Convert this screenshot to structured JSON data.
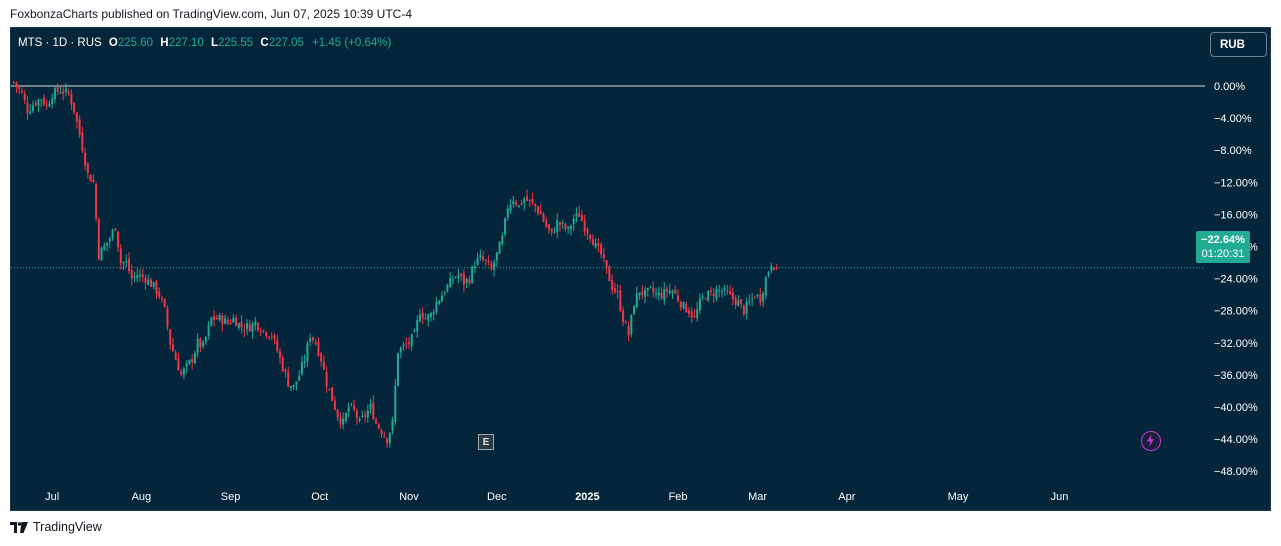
{
  "caption": "FoxbonzaCharts published on TradingView.com, Jun 07, 2025 10:39 UTC-4",
  "legend": {
    "symbol": "MTS · 1D · RUS",
    "open_label": "O",
    "open": "225.60",
    "high_label": "H",
    "high": "227.10",
    "low_label": "L",
    "low": "225.55",
    "close_label": "C",
    "close": "227.05",
    "change": "+1.45 (+0.64%)"
  },
  "currency_button": "RUB",
  "last_badge": {
    "value": "−22.64%",
    "countdown": "01:20:31"
  },
  "earnings_marker": "E",
  "footer_brand": "TradingView",
  "colors": {
    "up": "#22ab94",
    "down": "#f23645",
    "background": "#04253a",
    "zero_line": "#ffffff"
  },
  "icons": [
    "bolt-icon",
    "tradingview-logo-icon",
    "earnings-icon"
  ],
  "chart_data": {
    "type": "candlestick",
    "y_unit": "percent change",
    "y_ticks": [
      "0.00%",
      "−4.00%",
      "−8.00%",
      "−12.00%",
      "−16.00%",
      "−20.00%",
      "−24.00%",
      "−28.00%",
      "−32.00%",
      "−36.00%",
      "−40.00%",
      "−44.00%",
      "−48.00%"
    ],
    "ylim": [
      -49.5,
      1.5
    ],
    "x_ticks": [
      {
        "label": "Jul",
        "bold": false,
        "x": 15.0
      },
      {
        "label": "Aug",
        "bold": false,
        "x": 47.5
      },
      {
        "label": "Sep",
        "bold": false,
        "x": 80.0
      },
      {
        "label": "Oct",
        "bold": false,
        "x": 112.5
      },
      {
        "label": "Nov",
        "bold": false,
        "x": 145.0
      },
      {
        "label": "Dec",
        "bold": false,
        "x": 177.0
      },
      {
        "label": "2025",
        "bold": true,
        "x": 210.0
      },
      {
        "label": "Feb",
        "bold": false,
        "x": 243.0
      },
      {
        "label": "Mar",
        "bold": false,
        "x": 272.0
      },
      {
        "label": "Apr",
        "bold": false,
        "x": 304.5
      },
      {
        "label": "May",
        "bold": false,
        "x": 345.0
      },
      {
        "label": "Jun",
        "bold": false,
        "x": 382.0
      }
    ],
    "x_range": [
      0,
      435
    ],
    "zero_line": 0,
    "last_value": -22.64,
    "anchors": [
      [
        0,
        0.5
      ],
      [
        3,
        -1
      ],
      [
        5,
        -3
      ],
      [
        8,
        -2
      ],
      [
        10,
        -1.5
      ],
      [
        12,
        -2.5
      ],
      [
        14,
        -1
      ],
      [
        17,
        -0.5
      ],
      [
        20,
        -1
      ],
      [
        22,
        -3
      ],
      [
        24,
        -6
      ],
      [
        27,
        -11
      ],
      [
        29,
        -12
      ],
      [
        31,
        -21
      ],
      [
        33,
        -20
      ],
      [
        35,
        -19
      ],
      [
        37,
        -17.5
      ],
      [
        39,
        -22
      ],
      [
        41,
        -22
      ],
      [
        43,
        -24
      ],
      [
        45,
        -23.5
      ],
      [
        48,
        -24
      ],
      [
        51,
        -25
      ],
      [
        53,
        -26
      ],
      [
        55,
        -28
      ],
      [
        57,
        -32
      ],
      [
        59,
        -34
      ],
      [
        61,
        -36
      ],
      [
        63,
        -35
      ],
      [
        65,
        -34
      ],
      [
        67,
        -32
      ],
      [
        69,
        -32.5
      ],
      [
        72,
        -29
      ],
      [
        75,
        -29
      ],
      [
        78,
        -29.5
      ],
      [
        80,
        -29
      ],
      [
        83,
        -30
      ],
      [
        86,
        -30
      ],
      [
        88,
        -29.5
      ],
      [
        91,
        -30.5
      ],
      [
        94,
        -31
      ],
      [
        96,
        -33
      ],
      [
        98,
        -35
      ],
      [
        100,
        -37
      ],
      [
        102,
        -37.5
      ],
      [
        104,
        -36
      ],
      [
        106,
        -34
      ],
      [
        108,
        -31
      ],
      [
        110,
        -32
      ],
      [
        112,
        -34
      ],
      [
        114,
        -37
      ],
      [
        116,
        -39
      ],
      [
        118,
        -41
      ],
      [
        120,
        -42
      ],
      [
        122,
        -40
      ],
      [
        124,
        -40.5
      ],
      [
        126,
        -42
      ],
      [
        128,
        -41
      ],
      [
        130,
        -40
      ],
      [
        132,
        -42
      ],
      [
        134,
        -43
      ],
      [
        136,
        -44
      ],
      [
        138,
        -42
      ],
      [
        140,
        -33
      ],
      [
        142,
        -32.5
      ],
      [
        144,
        -32
      ],
      [
        146,
        -31
      ],
      [
        148,
        -28
      ],
      [
        150,
        -29
      ],
      [
        152,
        -28.5
      ],
      [
        154,
        -27
      ],
      [
        156,
        -26
      ],
      [
        158,
        -25
      ],
      [
        160,
        -24
      ],
      [
        162,
        -23.5
      ],
      [
        164,
        -24.5
      ],
      [
        166,
        -24
      ],
      [
        168,
        -22
      ],
      [
        170,
        -21.5
      ],
      [
        172,
        -22
      ],
      [
        174,
        -23
      ],
      [
        176,
        -21
      ],
      [
        178,
        -19
      ],
      [
        180,
        -15
      ],
      [
        182,
        -14
      ],
      [
        184,
        -15
      ],
      [
        186,
        -14
      ],
      [
        188,
        -14.5
      ],
      [
        190,
        -15
      ],
      [
        192,
        -16
      ],
      [
        194,
        -17.5
      ],
      [
        196,
        -18.5
      ],
      [
        198,
        -17
      ],
      [
        200,
        -17.5
      ],
      [
        202,
        -18
      ],
      [
        204,
        -16.5
      ],
      [
        206,
        -16
      ],
      [
        208,
        -17.5
      ],
      [
        210,
        -18.5
      ],
      [
        212,
        -20
      ],
      [
        214,
        -21
      ],
      [
        216,
        -23
      ],
      [
        218,
        -25
      ],
      [
        220,
        -26
      ],
      [
        222,
        -29
      ],
      [
        224,
        -31
      ],
      [
        226,
        -27
      ],
      [
        228,
        -25.5
      ],
      [
        230,
        -26
      ],
      [
        232,
        -25.5
      ],
      [
        234,
        -26
      ],
      [
        236,
        -26
      ],
      [
        238,
        -25.5
      ],
      [
        240,
        -25.5
      ],
      [
        242,
        -26.5
      ],
      [
        244,
        -27.5
      ],
      [
        246,
        -28
      ],
      [
        248,
        -29
      ],
      [
        250,
        -27
      ],
      [
        252,
        -26
      ],
      [
        254,
        -26
      ],
      [
        256,
        -25.5
      ],
      [
        258,
        -25.5
      ],
      [
        260,
        -26
      ],
      [
        262,
        -26.5
      ],
      [
        264,
        -27
      ],
      [
        266,
        -28
      ],
      [
        268,
        -27
      ],
      [
        270,
        -26
      ],
      [
        272,
        -26.5
      ],
      [
        274,
        -24
      ],
      [
        276,
        -22
      ],
      [
        278,
        -22.64
      ]
    ]
  }
}
